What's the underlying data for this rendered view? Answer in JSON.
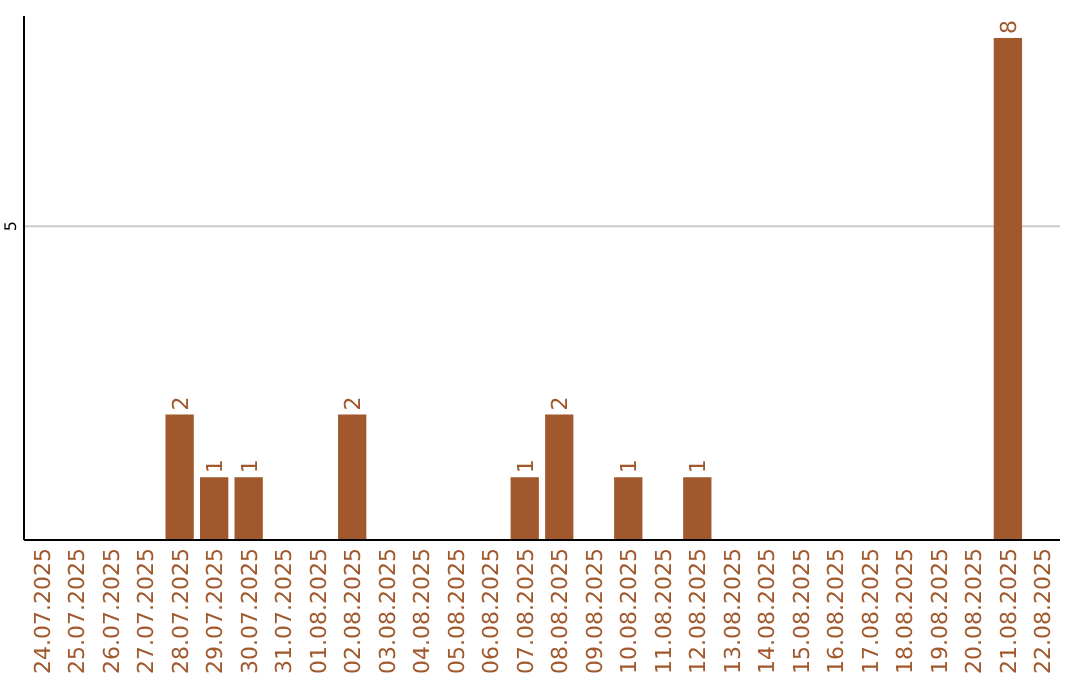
{
  "chart_data": {
    "type": "bar",
    "categories": [
      "24.07.2025",
      "25.07.2025",
      "26.07.2025",
      "27.07.2025",
      "28.07.2025",
      "29.07.2025",
      "30.07.2025",
      "31.07.2025",
      "01.08.2025",
      "02.08.2025",
      "03.08.2025",
      "04.08.2025",
      "05.08.2025",
      "06.08.2025",
      "07.08.2025",
      "08.08.2025",
      "09.08.2025",
      "10.08.2025",
      "11.08.2025",
      "12.08.2025",
      "13.08.2025",
      "14.08.2025",
      "15.08.2025",
      "16.08.2025",
      "17.08.2025",
      "18.08.2025",
      "19.08.2025",
      "20.08.2025",
      "21.08.2025",
      "22.08.2025"
    ],
    "values": [
      0,
      0,
      0,
      0,
      2,
      1,
      1,
      0,
      0,
      2,
      0,
      0,
      0,
      0,
      1,
      2,
      0,
      1,
      0,
      1,
      0,
      0,
      0,
      0,
      0,
      0,
      0,
      0,
      8,
      0
    ],
    "value_labels": [
      null,
      null,
      null,
      null,
      "2",
      "1",
      "1",
      null,
      null,
      "2",
      null,
      null,
      null,
      null,
      "1",
      "2",
      null,
      "1",
      null,
      "1",
      null,
      null,
      null,
      null,
      null,
      null,
      null,
      null,
      "8",
      null
    ],
    "color": "#a0582c",
    "ylim": [
      0,
      8.35
    ],
    "yticks": [
      {
        "value": 0,
        "label": null
      },
      5
    ],
    "grid": "y"
  }
}
